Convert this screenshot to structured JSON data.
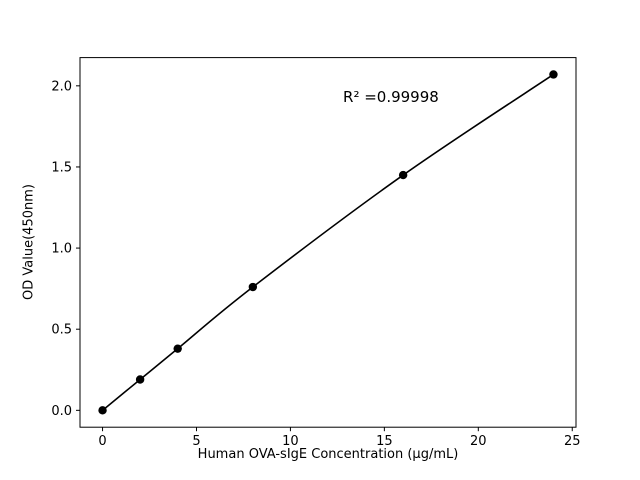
{
  "chart_data": {
    "type": "line",
    "title": "",
    "xlabel": "Human OVA-sIgE Concentration (µg/mL)",
    "ylabel": "OD Value(450nm)",
    "x": [
      0,
      2,
      4,
      8,
      16,
      24
    ],
    "y": [
      0.0,
      0.19,
      0.38,
      0.76,
      1.45,
      2.07
    ],
    "xlim": [
      -1.2,
      25.2
    ],
    "ylim": [
      -0.104,
      2.174
    ],
    "xticks": [
      0,
      5,
      10,
      15,
      20,
      25
    ],
    "xtick_labels": [
      "0",
      "5",
      "10",
      "15",
      "20",
      "25"
    ],
    "yticks": [
      0.0,
      0.5,
      1.0,
      1.5,
      2.0
    ],
    "ytick_labels": [
      "0.0",
      "0.5",
      "1.0",
      "1.5",
      "2.0"
    ],
    "grid": false,
    "legend": null,
    "line_color": "#000000",
    "marker_color": "#000000",
    "background_color": "#ffffff",
    "annotation": {
      "text": "R² =0.99998",
      "x": 12.8,
      "y": 1.93
    }
  }
}
